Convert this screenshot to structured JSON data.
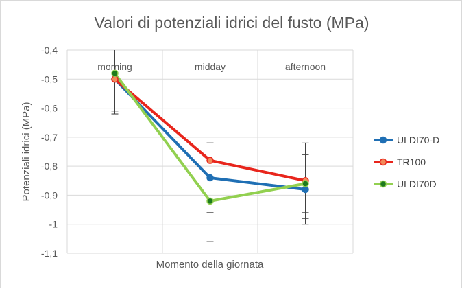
{
  "chart_data": {
    "type": "line",
    "title": "Valori di potenziali idrici del fusto (MPa)",
    "xlabel": "Momento della giornata",
    "ylabel": "Potenziali idrici (MPa)",
    "categories": [
      "morning",
      "midday",
      "afternoon"
    ],
    "ylim": [
      -1.1,
      -0.4
    ],
    "yticks": [
      -0.4,
      -0.5,
      -0.6,
      -0.7,
      -0.8,
      -0.9,
      -1,
      -1.1
    ],
    "ytick_labels": [
      "-0,4",
      "-0,5",
      "-0,6",
      "-0,7",
      "-0,8",
      "-0,9",
      "-1",
      "-1,1"
    ],
    "grid": true,
    "legend_position": "right",
    "series": [
      {
        "name": "ULDI70-D",
        "values": [
          -0.5,
          -0.84,
          -0.88
        ],
        "error": [
          0.12,
          0.12,
          0.12
        ],
        "color": "#1f6fb4",
        "marker_fill": "#1f6fb4"
      },
      {
        "name": "TR100",
        "values": [
          -0.5,
          -0.78,
          -0.85
        ],
        "error": [
          0.12,
          0.06,
          0.13
        ],
        "color": "#e8251c",
        "marker_fill": "#f28a5a"
      },
      {
        "name": "ULDI70D",
        "values": [
          -0.48,
          -0.92,
          -0.86
        ],
        "error": [
          0.13,
          0.14,
          0.1
        ],
        "color": "#92d050",
        "marker_fill": "#1e7a1e"
      }
    ]
  }
}
